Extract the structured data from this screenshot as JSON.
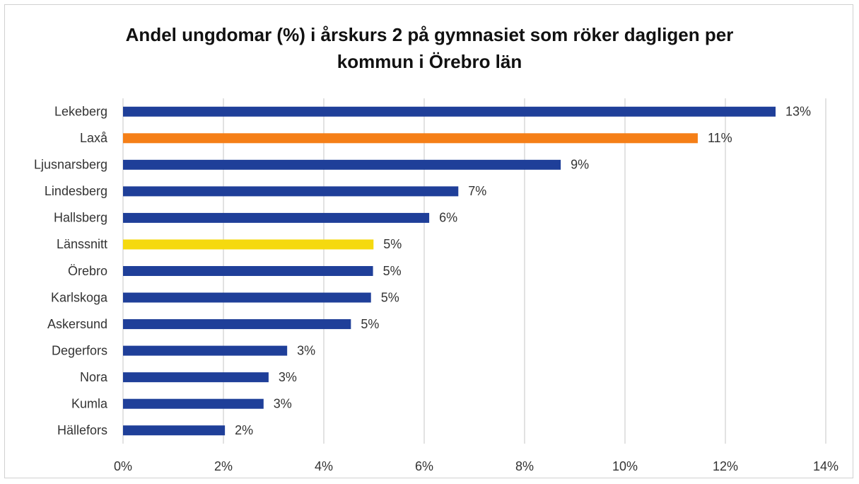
{
  "chart_data": {
    "type": "bar",
    "orientation": "horizontal",
    "title": "Andel ungdomar (%) i årskurs 2 på gymnasiet som röker dagligen per kommun i Örebro län",
    "categories": [
      "Lekeberg",
      "Laxå",
      "Ljusnarsberg",
      "Lindesberg",
      "Hallsberg",
      "Länssnitt",
      "Örebro",
      "Karlskoga",
      "Askersund",
      "Degerfors",
      "Nora",
      "Kumla",
      "Hällefors"
    ],
    "values": [
      13.0,
      11.45,
      8.72,
      6.68,
      6.1,
      4.99,
      4.98,
      4.94,
      4.54,
      3.27,
      2.9,
      2.8,
      2.03
    ],
    "value_labels": [
      "13%",
      "11%",
      "9%",
      "7%",
      "6%",
      "5%",
      "5%",
      "5%",
      "5%",
      "3%",
      "3%",
      "3%",
      "2%"
    ],
    "colors": [
      "#1f3f99",
      "#f57f17",
      "#1f3f99",
      "#1f3f99",
      "#1f3f99",
      "#f5d90f",
      "#1f3f99",
      "#1f3f99",
      "#1f3f99",
      "#1f3f99",
      "#1f3f99",
      "#1f3f99",
      "#1f3f99"
    ],
    "xlim": [
      0,
      14
    ],
    "xticks": [
      {
        "value": 0,
        "label": "0%"
      },
      {
        "value": 2,
        "label": "2%"
      },
      {
        "value": 4,
        "label": "4%"
      },
      {
        "value": 6,
        "label": "6%"
      },
      {
        "value": 8,
        "label": "8%"
      },
      {
        "value": 10,
        "label": "10%"
      },
      {
        "value": 12,
        "label": "12%"
      },
      {
        "value": 14,
        "label": "14%"
      }
    ],
    "grid": true
  }
}
